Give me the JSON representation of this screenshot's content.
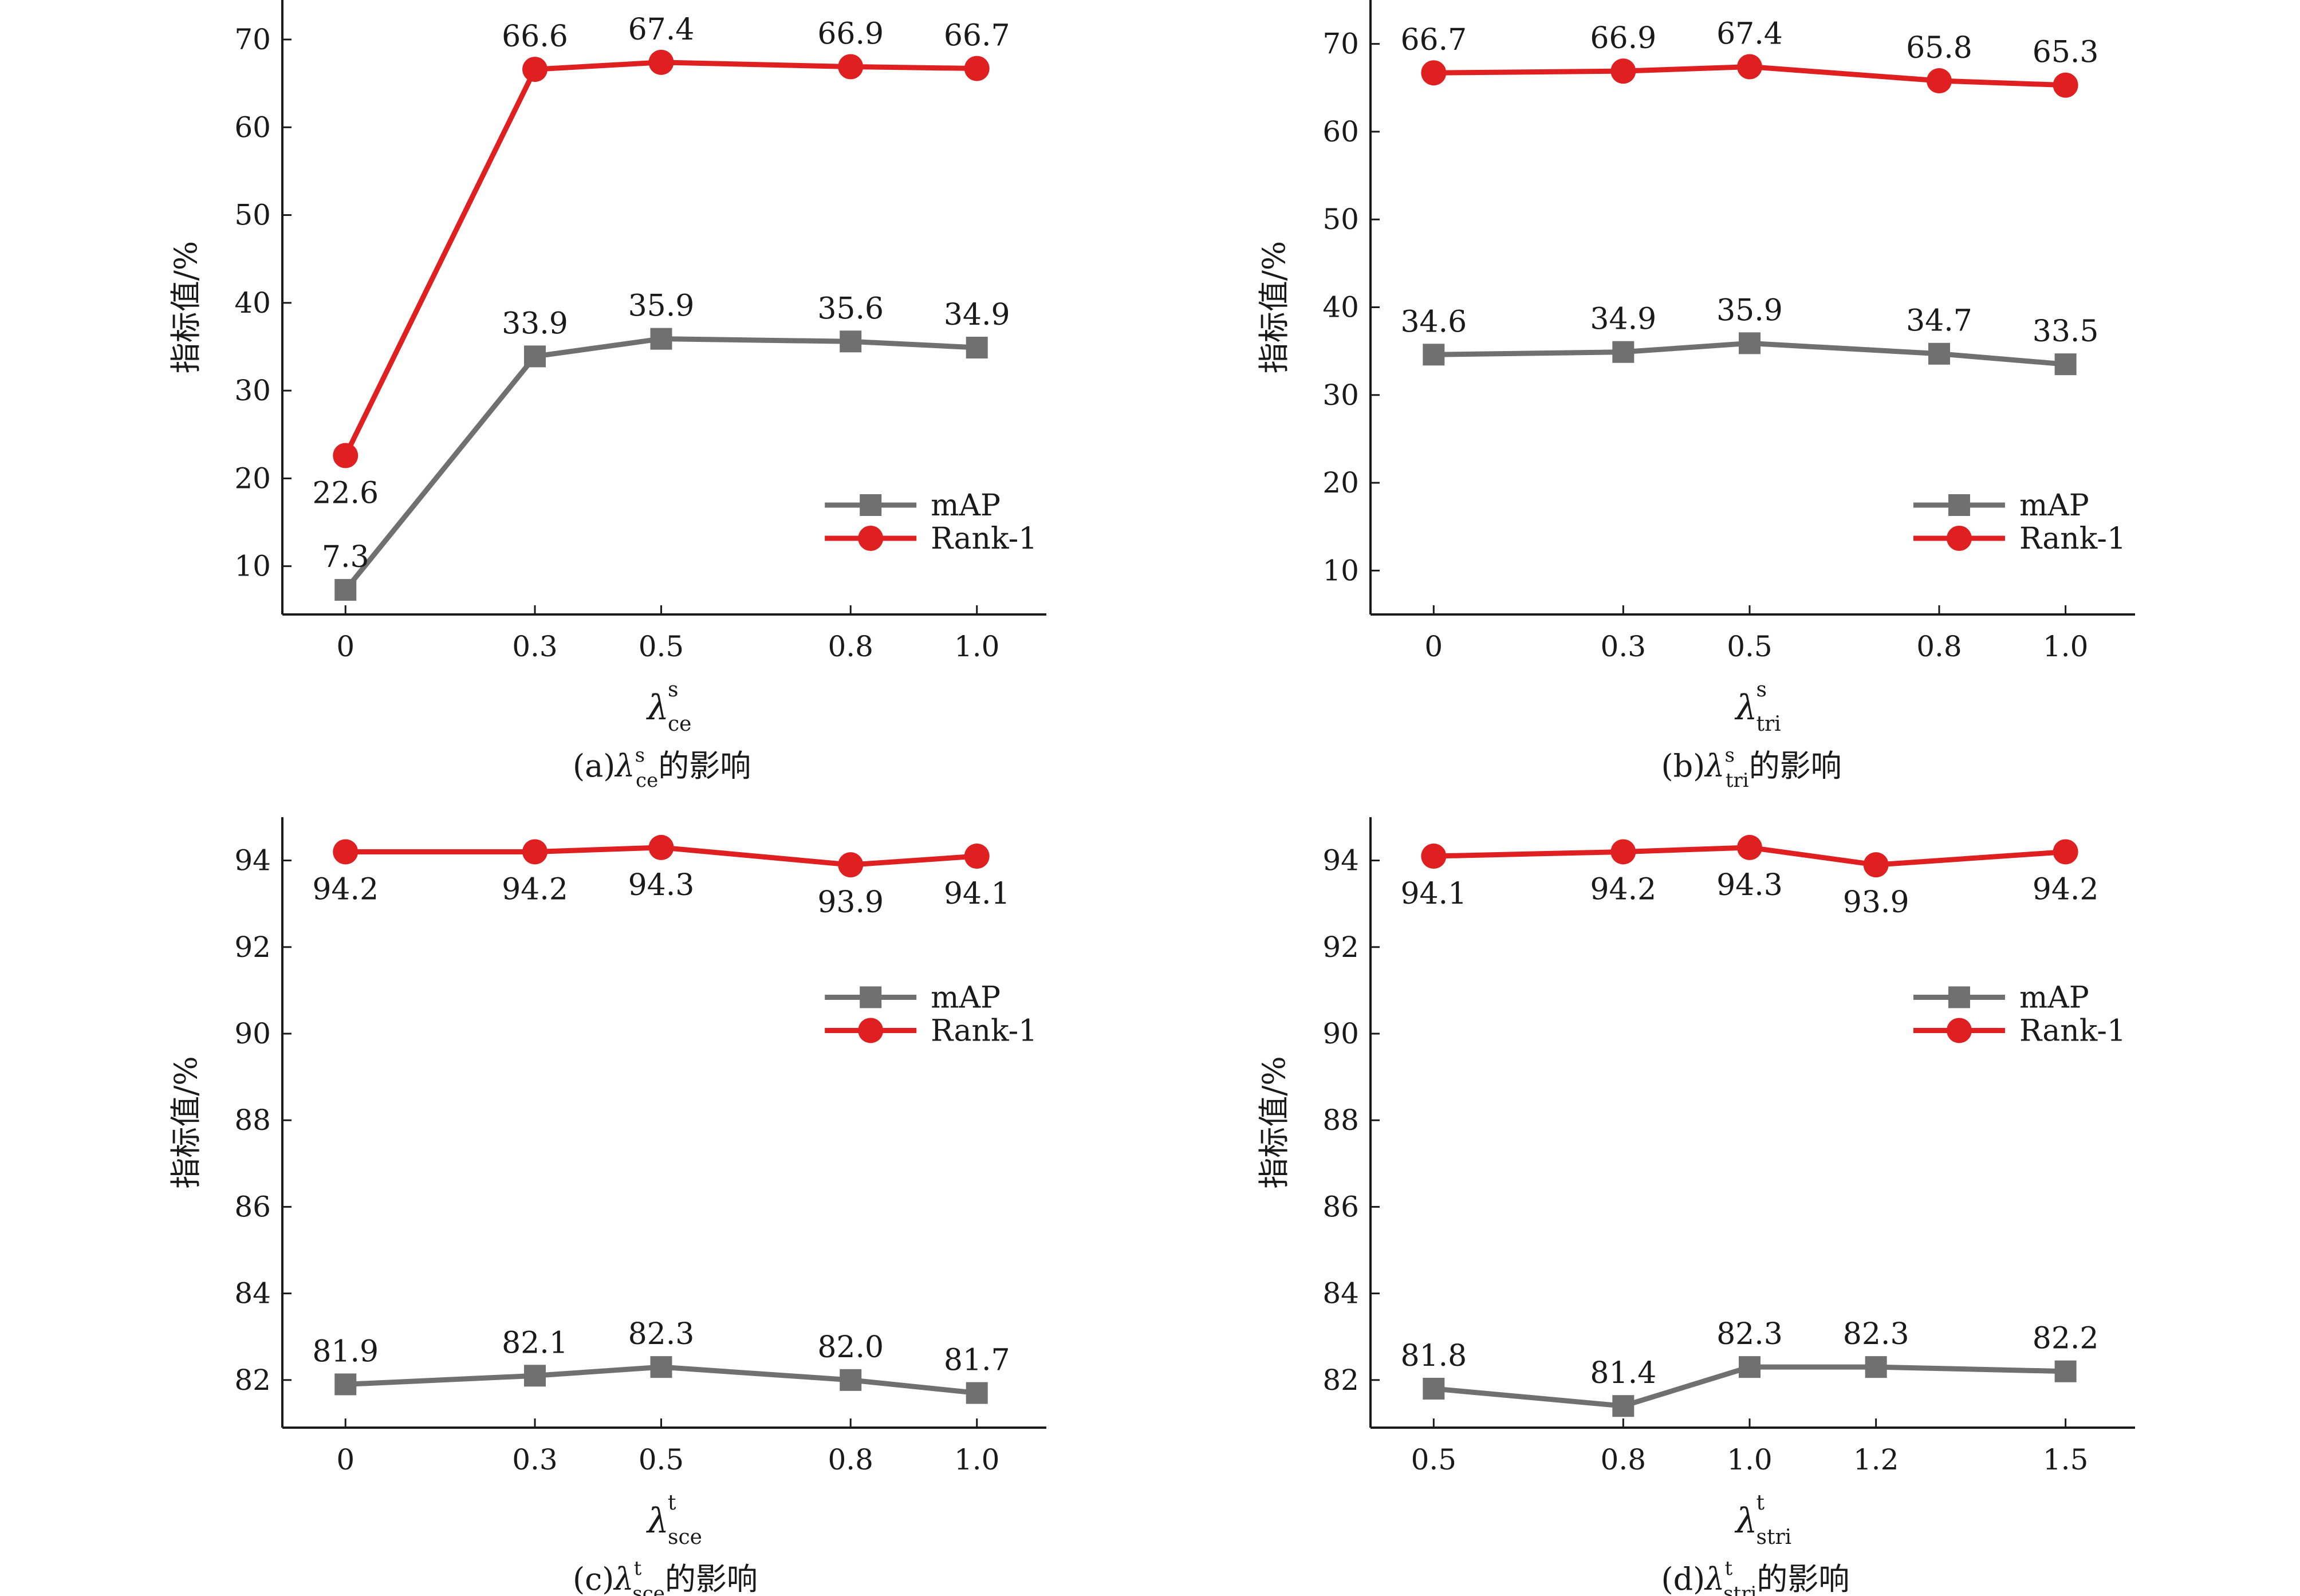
{
  "y_axis_label": "指标值/%",
  "legend": {
    "placement": "right-middle"
  },
  "colors": {
    "mAP": "#707070",
    "Rank-1": "#e02020",
    "axis": "#1a1a1a"
  },
  "chart_data": [
    {
      "type": "line",
      "panel": "a",
      "caption": {
        "prefix": "(a)",
        "symbol": "λ",
        "sup": "s",
        "sub": "ce",
        "suffix": "的影响"
      },
      "xlabel": {
        "symbol": "λ",
        "sup": "s",
        "sub": "ce"
      },
      "x": [
        0,
        0.3,
        0.5,
        0.8,
        1.0
      ],
      "x_ticks": [
        "0",
        "0.3",
        "0.5",
        "0.8",
        "1.0"
      ],
      "xlim": [
        -0.1,
        1.11
      ],
      "ylim": [
        4.5,
        74.5
      ],
      "y_ticks": [
        "10",
        "20",
        "30",
        "40",
        "50",
        "60",
        "70"
      ],
      "legend_placement": "middle-right",
      "series": [
        {
          "name": "mAP",
          "marker": "square",
          "values": [
            7.3,
            33.9,
            35.9,
            35.6,
            34.9
          ],
          "labels": [
            "7.3",
            "33.9",
            "35.9",
            "35.6",
            "34.9"
          ],
          "label_pos": [
            "above",
            "above",
            "above",
            "above",
            "above"
          ]
        },
        {
          "name": "Rank-1",
          "marker": "circle",
          "values": [
            22.6,
            66.6,
            67.4,
            66.9,
            66.7
          ],
          "labels": [
            "22.6",
            "66.6",
            "67.4",
            "66.9",
            "66.7"
          ],
          "label_pos": [
            "below",
            "above",
            "above",
            "above",
            "above"
          ]
        }
      ]
    },
    {
      "type": "line",
      "panel": "b",
      "caption": {
        "prefix": "(b)",
        "symbol": "λ",
        "sup": "s",
        "sub": "tri",
        "suffix": "的影响"
      },
      "xlabel": {
        "symbol": "λ",
        "sup": "s",
        "sub": "tri"
      },
      "x": [
        0,
        0.3,
        0.5,
        0.8,
        1.0
      ],
      "x_ticks": [
        "0",
        "0.3",
        "0.5",
        "0.8",
        "1.0"
      ],
      "xlim": [
        -0.1,
        1.11
      ],
      "ylim": [
        5,
        75
      ],
      "y_ticks": [
        "10",
        "20",
        "30",
        "40",
        "50",
        "60",
        "70"
      ],
      "legend_placement": "middle-right",
      "series": [
        {
          "name": "mAP",
          "marker": "square",
          "values": [
            34.6,
            34.9,
            35.9,
            34.7,
            33.5
          ],
          "labels": [
            "34.6",
            "34.9",
            "35.9",
            "34.7",
            "33.5"
          ],
          "label_pos": [
            "above",
            "above",
            "above",
            "above",
            "above"
          ]
        },
        {
          "name": "Rank-1",
          "marker": "circle",
          "values": [
            66.7,
            66.9,
            67.4,
            65.8,
            65.3
          ],
          "labels": [
            "66.7",
            "66.9",
            "67.4",
            "65.8",
            "65.3"
          ],
          "label_pos": [
            "above",
            "above",
            "above",
            "above",
            "above"
          ]
        }
      ]
    },
    {
      "type": "line",
      "panel": "c",
      "caption": {
        "prefix": "(c)",
        "symbol": "λ",
        "sup": "t",
        "sub": "sce",
        "suffix": "的影响"
      },
      "xlabel": {
        "symbol": "λ",
        "sup": "t",
        "sub": "sce"
      },
      "x": [
        0,
        0.3,
        0.5,
        0.8,
        1.0
      ],
      "x_ticks": [
        "0",
        "0.3",
        "0.5",
        "0.8",
        "1.0"
      ],
      "xlim": [
        -0.1,
        1.11
      ],
      "ylim": [
        80.9,
        95.0
      ],
      "y_ticks": [
        "82",
        "84",
        "86",
        "88",
        "90",
        "92",
        "94"
      ],
      "legend_placement": "middle-right",
      "series": [
        {
          "name": "mAP",
          "marker": "square",
          "values": [
            81.9,
            82.1,
            82.3,
            82.0,
            81.7
          ],
          "labels": [
            "81.9",
            "82.1",
            "82.3",
            "82.0",
            "81.7"
          ],
          "label_pos": [
            "above",
            "above",
            "above",
            "above",
            "above"
          ]
        },
        {
          "name": "Rank-1",
          "marker": "circle",
          "values": [
            94.2,
            94.2,
            94.3,
            93.9,
            94.1
          ],
          "labels": [
            "94.2",
            "94.2",
            "94.3",
            "93.9",
            "94.1"
          ],
          "label_pos": [
            "below",
            "below",
            "below",
            "below",
            "below"
          ]
        }
      ]
    },
    {
      "type": "line",
      "panel": "d",
      "caption": {
        "prefix": "(d)",
        "symbol": "λ",
        "sup": "t",
        "sub": "stri",
        "suffix": "的影响"
      },
      "xlabel": {
        "symbol": "λ",
        "sup": "t",
        "sub": "stri"
      },
      "x": [
        0.5,
        0.8,
        1.0,
        1.2,
        1.5
      ],
      "x_ticks": [
        "0.5",
        "0.8",
        "1.0",
        "1.2",
        "1.5"
      ],
      "xlim": [
        0.4,
        1.61
      ],
      "ylim": [
        80.9,
        95.0
      ],
      "y_ticks": [
        "82",
        "84",
        "86",
        "88",
        "90",
        "92",
        "94"
      ],
      "legend_placement": "middle-right",
      "series": [
        {
          "name": "mAP",
          "marker": "square",
          "values": [
            81.8,
            81.4,
            82.3,
            82.3,
            82.2
          ],
          "labels": [
            "81.8",
            "81.4",
            "82.3",
            "82.3",
            "82.2"
          ],
          "label_pos": [
            "above",
            "above",
            "above",
            "above",
            "above"
          ]
        },
        {
          "name": "Rank-1",
          "marker": "circle",
          "values": [
            94.1,
            94.2,
            94.3,
            93.9,
            94.2
          ],
          "labels": [
            "94.1",
            "94.2",
            "94.3",
            "93.9",
            "94.2"
          ],
          "label_pos": [
            "below",
            "below",
            "below",
            "below",
            "below"
          ]
        }
      ]
    }
  ]
}
